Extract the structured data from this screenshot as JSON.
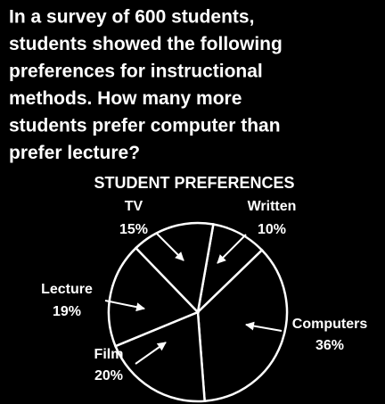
{
  "question": [
    "In a survey of 600 students,",
    "students showed the following",
    "preferences for instructional",
    "methods.  How many more",
    "students prefer computer than",
    "prefer lecture?"
  ],
  "chart_data": {
    "type": "pie",
    "title": "STUDENT PREFERENCES",
    "categories": [
      "Written",
      "Computers",
      "Film",
      "Lecture",
      "TV"
    ],
    "values": [
      10,
      36,
      20,
      19,
      15
    ],
    "value_labels": [
      "10%",
      "36%",
      "20%",
      "19%",
      "15%"
    ],
    "color": "#000000"
  }
}
